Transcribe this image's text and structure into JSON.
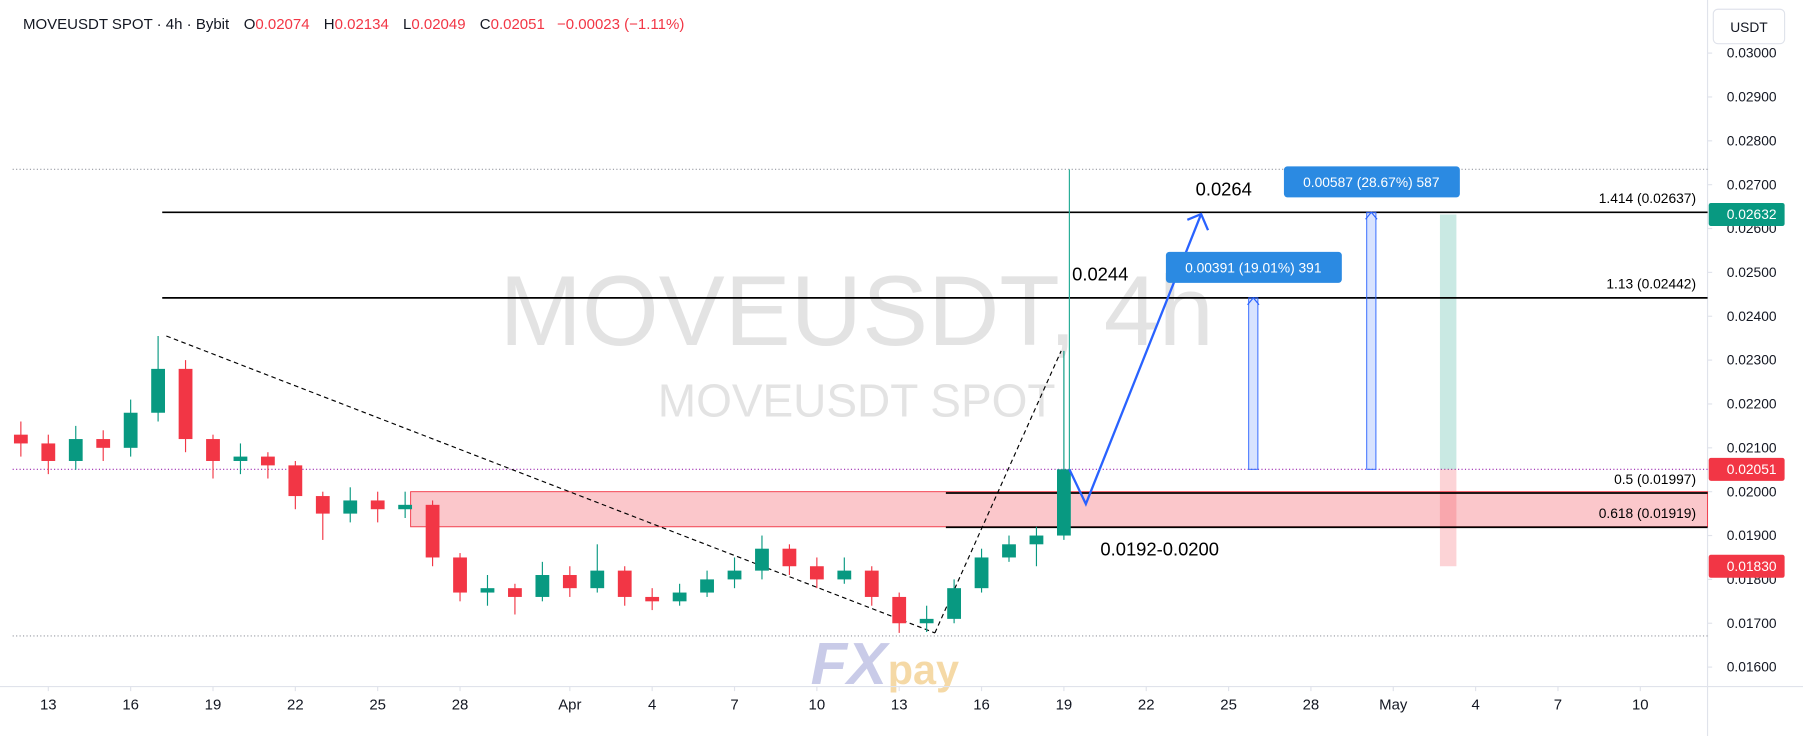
{
  "chart_data": {
    "type": "candlestick",
    "header": {
      "symbol": "MOVEUSDT SPOT · 4h · Bybit",
      "open_label": "O",
      "open": 0.02074,
      "high_label": "H",
      "high": 0.02134,
      "low_label": "L",
      "low": 0.02049,
      "close_label": "C",
      "close": 0.02051,
      "change": "−0.00023 (−1.11%)"
    },
    "currency": "USDT",
    "watermark": [
      "MOVEUSDT, 4h",
      "MOVEUSDT SPOT"
    ],
    "logo": [
      "FX",
      "pay"
    ],
    "xlim": [
      -1.76,
      60.45
    ],
    "ylim": [
      0.01561,
      0.03121
    ],
    "xticks": [
      {
        "value": 0,
        "label": "13"
      },
      {
        "value": 3,
        "label": "16"
      },
      {
        "value": 6,
        "label": "19"
      },
      {
        "value": 9,
        "label": "22"
      },
      {
        "value": 12,
        "label": "25"
      },
      {
        "value": 15,
        "label": "28"
      },
      {
        "value": 19,
        "label": "Apr"
      },
      {
        "value": 22,
        "label": "4"
      },
      {
        "value": 25,
        "label": "7"
      },
      {
        "value": 28,
        "label": "10"
      },
      {
        "value": 31,
        "label": "13"
      },
      {
        "value": 34,
        "label": "16"
      },
      {
        "value": 37,
        "label": "19"
      },
      {
        "value": 40,
        "label": "22"
      },
      {
        "value": 43,
        "label": "25"
      },
      {
        "value": 46,
        "label": "28"
      },
      {
        "value": 49,
        "label": "May"
      },
      {
        "value": 52,
        "label": "4"
      },
      {
        "value": 55,
        "label": "7"
      },
      {
        "value": 58,
        "label": "10"
      }
    ],
    "yticks": [
      {
        "value": 0.016,
        "label": "0.01600"
      },
      {
        "value": 0.017,
        "label": "0.01700"
      },
      {
        "value": 0.018,
        "label": "0.01800"
      },
      {
        "value": 0.019,
        "label": "0.01900"
      },
      {
        "value": 0.02,
        "label": "0.02000"
      },
      {
        "value": 0.021,
        "label": "0.02100"
      },
      {
        "value": 0.022,
        "label": "0.02200"
      },
      {
        "value": 0.023,
        "label": "0.02300"
      },
      {
        "value": 0.024,
        "label": "0.02400"
      },
      {
        "value": 0.025,
        "label": "0.02500"
      },
      {
        "value": 0.026,
        "label": "0.02600"
      },
      {
        "value": 0.027,
        "label": "0.02700"
      },
      {
        "value": 0.028,
        "label": "0.02800"
      },
      {
        "value": 0.029,
        "label": "0.02900"
      },
      {
        "value": 0.03,
        "label": "0.03000"
      }
    ],
    "up_color": "#089981",
    "down_color": "#f23645",
    "x": [
      -1,
      0,
      1,
      2,
      3,
      4,
      5,
      6,
      7,
      8,
      9,
      10,
      11,
      12,
      13,
      14,
      15,
      16,
      17,
      18,
      19,
      20,
      21,
      22,
      23,
      24,
      25,
      26,
      27,
      28,
      29,
      30,
      31,
      32,
      33,
      34,
      35,
      36,
      37
    ],
    "open": [
      0.0213,
      0.0211,
      0.0207,
      0.0212,
      0.021,
      0.0218,
      0.0228,
      0.0212,
      0.0207,
      0.0208,
      0.0206,
      0.0199,
      0.0195,
      0.0198,
      0.0196,
      0.0197,
      0.0185,
      0.0177,
      0.0178,
      0.0176,
      0.0181,
      0.0178,
      0.0182,
      0.0176,
      0.0175,
      0.0177,
      0.018,
      0.0182,
      0.0187,
      0.0183,
      0.018,
      0.0182,
      0.0176,
      0.017,
      0.0171,
      0.0178,
      0.0185,
      0.0188,
      0.019
    ],
    "high": [
      0.0216,
      0.0213,
      0.0215,
      0.0214,
      0.0221,
      0.02355,
      0.023,
      0.0213,
      0.0211,
      0.0209,
      0.0207,
      0.02,
      0.0201,
      0.02,
      0.02,
      0.0198,
      0.0186,
      0.0181,
      0.0179,
      0.0184,
      0.0183,
      0.0188,
      0.0183,
      0.0178,
      0.0179,
      0.0182,
      0.0185,
      0.019,
      0.0188,
      0.0185,
      0.0185,
      0.0183,
      0.0177,
      0.0174,
      0.018,
      0.0187,
      0.019,
      0.0192,
      0.02321
    ],
    "low": [
      0.0208,
      0.0204,
      0.0205,
      0.0207,
      0.0208,
      0.0216,
      0.0209,
      0.0203,
      0.0204,
      0.0203,
      0.0196,
      0.0189,
      0.0193,
      0.0193,
      0.0194,
      0.0183,
      0.0175,
      0.0174,
      0.0172,
      0.0175,
      0.0176,
      0.0177,
      0.0174,
      0.0173,
      0.0174,
      0.0176,
      0.0178,
      0.018,
      0.0181,
      0.0178,
      0.0179,
      0.0174,
      0.01678,
      0.0168,
      0.017,
      0.0177,
      0.0184,
      0.0183,
      0.0189
    ],
    "close": [
      0.0211,
      0.0207,
      0.0212,
      0.021,
      0.0218,
      0.0228,
      0.0212,
      0.0207,
      0.0208,
      0.0206,
      0.0199,
      0.0195,
      0.0198,
      0.0196,
      0.0197,
      0.0185,
      0.0177,
      0.0178,
      0.0176,
      0.0181,
      0.0178,
      0.0182,
      0.0176,
      0.0175,
      0.0177,
      0.018,
      0.0182,
      0.0187,
      0.0183,
      0.018,
      0.0182,
      0.0176,
      0.017,
      0.0171,
      0.0178,
      0.0185,
      0.0188,
      0.019,
      0.02051
    ],
    "levels": [
      {
        "label": "1.414 (0.02637)",
        "value": 0.02637,
        "from": 4.15
      },
      {
        "label": "1.13 (0.02442)",
        "value": 0.02442,
        "from": 4.15
      },
      {
        "label": "0.5 (0.01997)",
        "value": 0.01997,
        "from": 32.7
      },
      {
        "label": "0.618 (0.01919)",
        "value": 0.01919,
        "from": 32.7
      }
    ],
    "zone": {
      "label": "0.0192-0.0200",
      "low": 0.0192,
      "high": 0.02,
      "from": 13.2
    },
    "annotations": [
      {
        "text": "0.0264",
        "x": 41.8,
        "y": 0.02675
      },
      {
        "text": "0.0244",
        "x": 37.3,
        "y": 0.02481
      }
    ],
    "measures": [
      {
        "label": "0.00391 (19.01%) 391",
        "x": 43.9,
        "from": 0.02051,
        "to": 0.02442
      },
      {
        "label": "0.00587 (28.67%) 587",
        "x": 48.2,
        "from": 0.02051,
        "to": 0.02637
      }
    ],
    "trendlines": [
      [
        [
          4.3,
          0.02355
        ],
        [
          32.3,
          0.01678
        ]
      ],
      [
        [
          32.3,
          0.01678
        ],
        [
          36.9,
          0.02321
        ]
      ]
    ],
    "projection": {
      "x": [
        37.2,
        37.8,
        42.0
      ],
      "y": [
        0.02051,
        0.01972,
        0.02633
      ]
    },
    "range_bounds": [
      0.02735,
      0.01671
    ],
    "spike_line": {
      "x": 37.2,
      "from": 0.02051,
      "to": 0.02735
    },
    "position": {
      "from": 50.7,
      "to": 51.3,
      "entry": 0.02051,
      "target": 0.02632,
      "stop": 0.0183
    },
    "price_tags": [
      {
        "value": 0.02632,
        "label": "0.02632",
        "color": "#089981"
      },
      {
        "value": 0.02051,
        "label": "0.02051",
        "color": "#f23645"
      },
      {
        "value": 0.0183,
        "label": "0.01830",
        "color": "#f23645"
      }
    ]
  }
}
